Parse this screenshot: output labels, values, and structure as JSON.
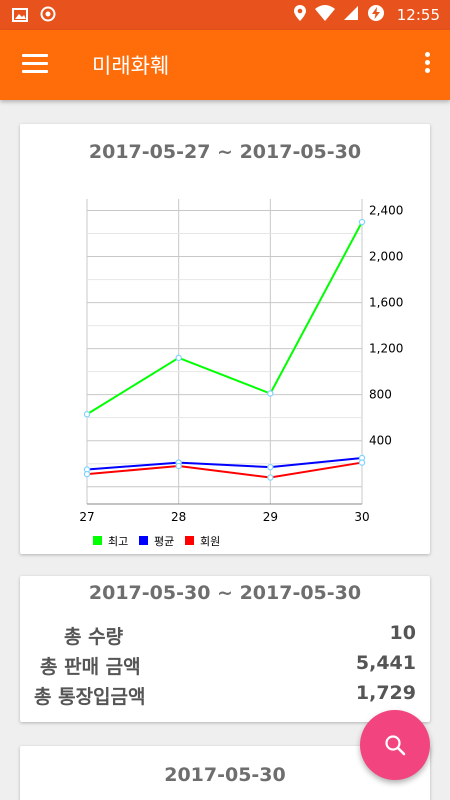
{
  "status_bar": {
    "time": "12:55"
  },
  "app_bar": {
    "title": "미래화훼"
  },
  "chart_card": {
    "title": "2017-05-27 ~ 2017-05-30"
  },
  "chart_data": {
    "type": "line",
    "categories": [
      "27",
      "28",
      "29",
      "30"
    ],
    "series": [
      {
        "name": "최고",
        "color": "#00ff00",
        "values": [
          630,
          1120,
          810,
          2300
        ]
      },
      {
        "name": "평균",
        "color": "#0000ff",
        "values": [
          150,
          210,
          170,
          250
        ]
      },
      {
        "name": "회원",
        "color": "#ff0000",
        "values": [
          110,
          180,
          80,
          210
        ]
      }
    ],
    "y_ticks": [
      "400",
      "800",
      "1,200",
      "1,600",
      "2,000",
      "2,400"
    ],
    "y_tick_values": [
      400,
      800,
      1200,
      1600,
      2000,
      2400
    ],
    "ylim": [
      -150,
      2500
    ],
    "yaxis_position": "right",
    "grid": true,
    "legend_position": "bottom-left"
  },
  "summary_card": {
    "title": "2017-05-30 ~ 2017-05-30",
    "rows": [
      {
        "label": "총 수량",
        "value": "10"
      },
      {
        "label": "총 판매 금액",
        "value": "5,441"
      },
      {
        "label": "총 통장입금액",
        "value": "1,729"
      }
    ]
  },
  "third_card": {
    "title": "2017-05-30"
  },
  "colors": {
    "status_bar": "#e8521c",
    "app_bar": "#ff6d0a",
    "fab": "#f2447f"
  }
}
